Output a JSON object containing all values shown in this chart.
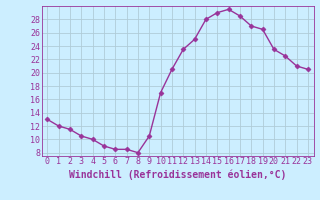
{
  "x": [
    0,
    1,
    2,
    3,
    4,
    5,
    6,
    7,
    8,
    9,
    10,
    11,
    12,
    13,
    14,
    15,
    16,
    17,
    18,
    19,
    20,
    21,
    22,
    23
  ],
  "y": [
    13,
    12,
    11.5,
    10.5,
    10,
    9,
    8.5,
    8.5,
    8,
    10.5,
    17,
    20.5,
    23.5,
    25,
    28,
    29,
    29.5,
    28.5,
    27,
    26.5,
    23.5,
    22.5,
    21,
    20.5
  ],
  "line_color": "#993399",
  "bg_color": "#cceeff",
  "grid_color": "#aaccdd",
  "xlabel": "Windchill (Refroidissement éolien,°C)",
  "xlim": [
    -0.5,
    23.5
  ],
  "ylim": [
    7.5,
    30
  ],
  "yticks": [
    8,
    10,
    12,
    14,
    16,
    18,
    20,
    22,
    24,
    26,
    28
  ],
  "xticks": [
    0,
    1,
    2,
    3,
    4,
    5,
    6,
    7,
    8,
    9,
    10,
    11,
    12,
    13,
    14,
    15,
    16,
    17,
    18,
    19,
    20,
    21,
    22,
    23
  ],
  "tick_label_fontsize": 6,
  "xlabel_fontsize": 7,
  "linewidth": 1.0,
  "markersize": 2.5
}
